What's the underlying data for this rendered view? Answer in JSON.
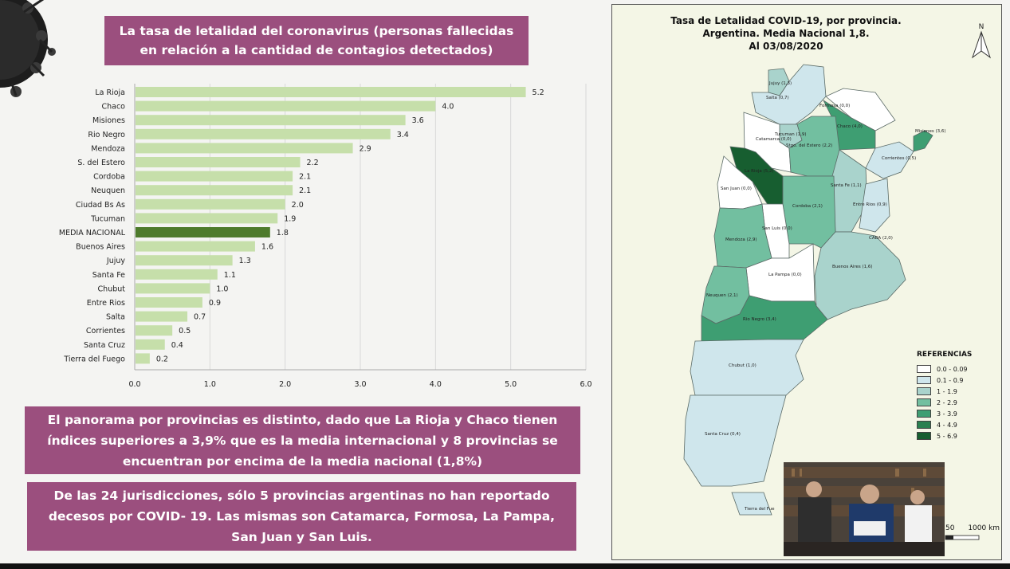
{
  "banners": {
    "top": "La tasa de letalidad del coronavirus (personas fallecidas en relación a la cantidad de contagios detectados)",
    "middle": "El panorama por provincias es distinto, dado que La Rioja y Chaco  tienen índices superiores a 3,9% que es la media internacional y 8 provincias se encuentran por encima de la media nacional (1,8%)",
    "bottom": "De las 24 jurisdicciones, sólo 5 provincias argentinas no han reportado decesos por COVID- 19. Las mismas son Catamarca, Formosa, La Pampa, San Juan y San Luis."
  },
  "chart_data": {
    "type": "bar",
    "orientation": "horizontal",
    "categories": [
      "La Rioja",
      "Chaco",
      "Misiones",
      "Rio Negro",
      "Mendoza",
      "S. del Estero",
      "Cordoba",
      "Neuquen",
      "Ciudad Bs As",
      "Tucuman",
      "MEDIA NACIONAL",
      "Buenos Aires",
      "Jujuy",
      "Santa Fe",
      "Chubut",
      "Entre Rios",
      "Salta",
      "Corrientes",
      "Santa Cruz",
      "Tierra del Fuego"
    ],
    "values": [
      5.2,
      4.0,
      3.6,
      3.4,
      2.9,
      2.2,
      2.1,
      2.1,
      2.0,
      1.9,
      1.8,
      1.6,
      1.3,
      1.1,
      1.0,
      0.9,
      0.7,
      0.5,
      0.4,
      0.2
    ],
    "value_labels": [
      "5.2",
      "4.0",
      "3.6",
      "3.4",
      "2.9",
      "2.2",
      "2.1",
      "2.1",
      "2.0",
      "1.9",
      "1.8",
      "1.6",
      "1.3",
      "1.1",
      "1.0",
      "0.9",
      "0.7",
      "0.5",
      "0.4",
      "0.2"
    ],
    "highlight_category": "MEDIA NACIONAL",
    "xlim": [
      0,
      6
    ],
    "xticks": [
      "0.0",
      "1.0",
      "2.0",
      "3.0",
      "4.0",
      "5.0",
      "6.0"
    ],
    "grid": true,
    "colors": {
      "bar": "#c6dfaa",
      "highlight": "#4e7b2c"
    }
  },
  "map": {
    "title_lines": [
      "Tasa de Letalidad COVID-19, por provincia.",
      "Argentina. Media Nacional 1,8.",
      "Al 03/08/2020"
    ],
    "north_label": "N",
    "legend_title": "REFERENCIAS",
    "legend": [
      {
        "label": "0.0 - 0.09",
        "color": "#ffffff"
      },
      {
        "label": "0.1 - 0.9",
        "color": "#cfe6ec"
      },
      {
        "label": "1 - 1.9",
        "color": "#a9d3cc"
      },
      {
        "label": "2 - 2.9",
        "color": "#72bfa0"
      },
      {
        "label": "3 - 3.9",
        "color": "#3e9e72"
      },
      {
        "label": "4 - 4.9",
        "color": "#2a8050"
      },
      {
        "label": "5 - 6.9",
        "color": "#175e30"
      }
    ],
    "province_labels": [
      "Jujuy (1,3)",
      "Salta (0,7)",
      "Formosa (0,0)",
      "Tucuman (1,9)",
      "Chaco (4,0)",
      "Misiones (3,6)",
      "Catamarca (0,0)",
      "Stgo. del Estero (2,2)",
      "Corrientes (0,5)",
      "La Rioja (5,2)",
      "Santa Fe (1,1)",
      "San Juan (0,0)",
      "Entre Rios (0,9)",
      "Cordoba (2,1)",
      "San Luis (0,0)",
      "CABA (2,0)",
      "Mendoza (2,9)",
      "Buenos Aires (1,6)",
      "La Pampa (0,0)",
      "Neuquen (2,1)",
      "Rio Negro (3,4)",
      "Chubut (1,0)",
      "Santa Cruz (0,4)",
      "Tierra del Fue"
    ],
    "scale_labels": [
      "50",
      "1000 km"
    ]
  }
}
